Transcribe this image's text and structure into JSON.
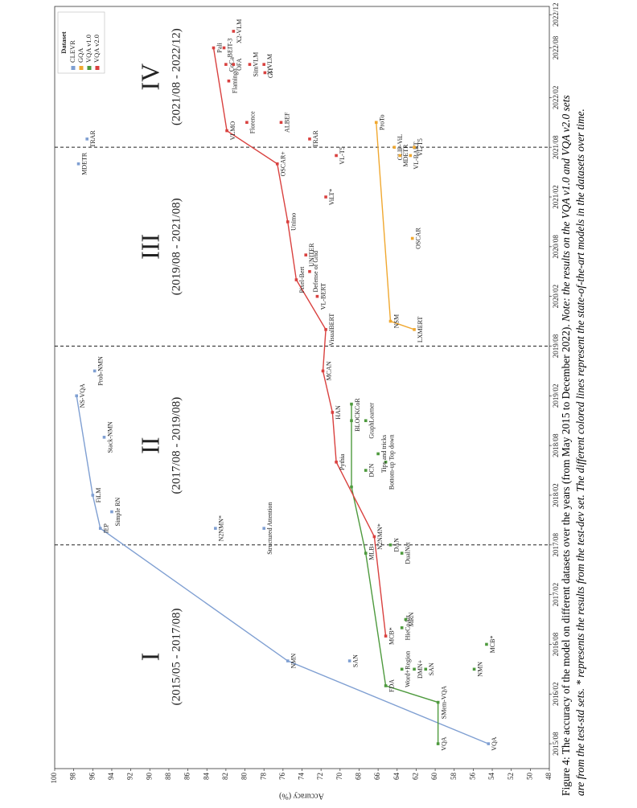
{
  "chart_data": {
    "type": "line",
    "xlim": [
      "2015/05",
      "2023/01"
    ],
    "xticks": [
      "2015/08",
      "2016/02",
      "2016/08",
      "2017/02",
      "2017/08",
      "2018/02",
      "2018/08",
      "2019/02",
      "2019/08",
      "2020/02",
      "2020/08",
      "2021/02",
      "2021/08",
      "2022/02",
      "2022/08",
      "2022/12"
    ],
    "ylim": [
      48,
      100
    ],
    "yticks": [
      48,
      50,
      52,
      54,
      56,
      58,
      60,
      62,
      64,
      66,
      68,
      70,
      72,
      74,
      76,
      78,
      80,
      82,
      84,
      86,
      88,
      90,
      92,
      94,
      96,
      98,
      100
    ],
    "ylabel": "Accuracy (%)",
    "legend": {
      "title": "Dataset",
      "position": "upper right"
    },
    "boundaries": [
      "2017/08",
      "2019/08",
      "2021/08"
    ],
    "periods": [
      {
        "numeral": "I",
        "range": "(2015/05 - 2017/08)"
      },
      {
        "numeral": "II",
        "range": "(2017/08 - 2019/08)"
      },
      {
        "numeral": "III",
        "range": "(2019/08 - 2021/08)"
      },
      {
        "numeral": "IV",
        "range": "(2021/08 - 2022/12)"
      }
    ],
    "series": [
      {
        "name": "CLEVR",
        "color": "#7f9fd2",
        "line": {
          "x": [
            "2015/08",
            "2016/06",
            "2017/10",
            "2018/02",
            "2019/02"
          ],
          "values": [
            54.4,
            75.5,
            95.2,
            96,
            97.7
          ],
          "labels": [
            "VQA",
            "NMN",
            "IEP",
            "FiLM",
            "NS-VQA"
          ]
        },
        "points": {
          "x": [
            "2017/12",
            "2018/09",
            "2019/05",
            "2016/06",
            "2017/10",
            "2017/10",
            "2021/06",
            "2021/09"
          ],
          "values": [
            94,
            94.8,
            95.8,
            69,
            83.1,
            78,
            97.5,
            96.6
          ],
          "labels": [
            "Simple RN",
            "Stack-NMN",
            "Prob-NMN",
            "SAN",
            "N2NMN*",
            "Structured Attention",
            "MDETR",
            "TRAR"
          ]
        }
      },
      {
        "name": "GQA",
        "color": "#f0a830",
        "line": {
          "x": [
            "2019/10",
            "2019/11",
            "2021/11"
          ],
          "values": [
            62.2,
            64.7,
            66.2
          ],
          "labels": [
            "LXMERT",
            "NSM",
            "ProTo"
          ]
        },
        "points": {
          "x": [
            "2020/09",
            "2021/08",
            "2021/07",
            "2021/07",
            "2021/08"
          ],
          "values": [
            62.4,
            64.3,
            63.7,
            62.6,
            62.2
          ],
          "labels": [
            "OSCAR",
            "CLIP-ViL",
            "MDETR",
            "VL-BART",
            "VL-T5"
          ]
        }
      },
      {
        "name": "VQA v1.0",
        "color": "#4e9a3e",
        "line": {
          "x": [
            "2015/08",
            "2016/01",
            "2016/03",
            "2017/07",
            "2018/03",
            "2019/01"
          ],
          "values": [
            59.7,
            59.7,
            65.2,
            67.3,
            68.8,
            68.8
          ],
          "labels": [
            "VQA",
            "SMem-VQA",
            "FDA",
            "MLB",
            null,
            "CoR"
          ]
        },
        "points": {
          "x": [
            "2016/10",
            "2016/11",
            "2016/05",
            "2016/05",
            "2016/05",
            "2016/05",
            "2016/08",
            "2017/08",
            "2017/07",
            "2018/06",
            "2018/05",
            "2018/07",
            "2018/11",
            "2018/11"
          ],
          "values": [
            63.5,
            63.1,
            63.5,
            62.2,
            61,
            55.9,
            54.6,
            64.7,
            63.5,
            65.2,
            67.3,
            66,
            67.3,
            68.8
          ],
          "labels": [
            "HieCoAtt",
            "MRN",
            "Word+Region",
            "DMN+",
            "SAN",
            "NMN",
            "MCB*",
            "DAN",
            "DualNet",
            "Bottom-up Top down",
            "DCN",
            "Tips and tricks",
            "GraphLearner",
            "BLOCK"
          ]
        }
      },
      {
        "name": "VQA v2.0",
        "color": "#d9413f",
        "line": {
          "x": [
            "2016/09",
            "2017/09",
            "2018/06",
            "2018/12",
            "2019/05",
            "2019/10",
            "2020/04",
            "2020/11",
            "2021/06",
            "2021/10",
            "2022/08"
          ],
          "values": [
            65.2,
            66.4,
            70.4,
            70.8,
            71.8,
            71.5,
            74.6,
            75.5,
            76.6,
            81.9,
            83.3
          ],
          "labels": [
            "MCB*",
            "N2NMN*",
            "Pythia",
            "HAN",
            "MCAN",
            "VisualBERT",
            "Pixel-Bert",
            "Unimo",
            "OSCAR+",
            "VLMO",
            "Pali"
          ]
        },
        "points": {
          "x": [
            "2020/02",
            "2020/07",
            "2020/05",
            "2021/02",
            "2021/07",
            "2021/09",
            "2021/11",
            "2021/11",
            "2022/05",
            "2022/04",
            "2022/06",
            "2022/06",
            "2022/08",
            "2022/06",
            "2022/06",
            "2022/10"
          ],
          "values": [
            72.4,
            73.6,
            73.2,
            71.5,
            70.4,
            73.2,
            76.2,
            79.8,
            77.9,
            81.7,
            82,
            81.2,
            82.2,
            79.5,
            78,
            81.2
          ],
          "labels": [
            "VL-BERT",
            "UNITER",
            "Defense of Grid",
            "ViLT*",
            "VL-T5",
            "TRAR",
            "ALBEF",
            "Florence",
            "GIT",
            "Flamingo",
            "CoCa",
            "OFA",
            "BEIT-3",
            "SimVLM",
            "X-VLM",
            "X2-VLM"
          ]
        }
      }
    ]
  },
  "caption": {
    "parts": [
      "Figure 4: The accuracy of the model on different datasets over the years (from May 2015 to December 2022).",
      "Note: the results on the VQA v1.0 and VQA v2.0 sets",
      "are from the test-std sets. * represents the results from the test-dev set. The different colored lines represent the state-of-the-art models in the datasets over time."
    ]
  }
}
